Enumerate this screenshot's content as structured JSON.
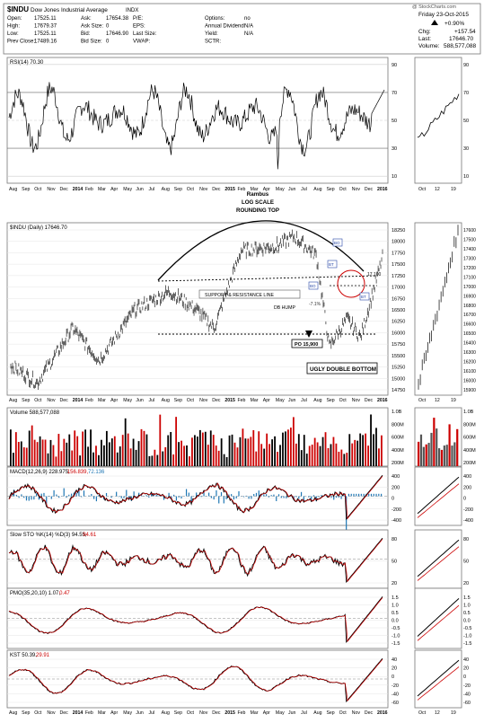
{
  "header": {
    "title": "$INDU",
    "subtitle": "Dow Jones Industrial Average",
    "exchange": "INDX",
    "watermark": "@ StockCharts.com",
    "date": "Friday 23-Oct-2015",
    "change_pct": "+0.90%",
    "chg_label": "Chg:",
    "chg_value": "+157.54",
    "last_label": "Last:",
    "last_value": "17646.70",
    "volume_label": "Volume:",
    "volume_value": "588,577,088",
    "quotes": [
      {
        "label": "Open:",
        "value": "17525.11"
      },
      {
        "label": "High:",
        "value": "17679.37"
      },
      {
        "label": "Low:",
        "value": "17525.11"
      },
      {
        "label": "Prev Close:",
        "value": "17489.16"
      }
    ],
    "quotes2": [
      {
        "label": "Ask:",
        "value": "17654.38"
      },
      {
        "label": "Ask Size:",
        "value": "0"
      },
      {
        "label": "Bid:",
        "value": "17646.90"
      },
      {
        "label": "Bid Size:",
        "value": "0"
      }
    ],
    "quotes3": [
      {
        "label": "P/E:",
        "value": ""
      },
      {
        "label": "EPS:",
        "value": ""
      },
      {
        "label": "Last Size:",
        "value": ""
      },
      {
        "label": "VWAP:",
        "value": ""
      }
    ],
    "quotes4": [
      {
        "label": "Options:",
        "value": "no"
      },
      {
        "label": "Annual Dividend:",
        "value": "N/A"
      },
      {
        "label": "Yield:",
        "value": "N/A"
      },
      {
        "label": "SCTR:",
        "value": ""
      }
    ]
  },
  "colors": {
    "up": "#000000",
    "down": "#cc0000",
    "macd_hist": "#1f77b4",
    "signal": "#cc0000",
    "dash": "#000000"
  },
  "x_axis": {
    "months": [
      "Aug",
      "Sep",
      "Oct",
      "Nov",
      "Dec",
      "2014",
      "Feb",
      "Mar",
      "Apr",
      "May",
      "Jun",
      "Jul",
      "Aug",
      "Sep",
      "Oct",
      "Nov",
      "Dec",
      "2015",
      "Feb",
      "Mar",
      "Apr",
      "May",
      "Jun",
      "Jul",
      "Aug",
      "Sep",
      "Oct",
      "Nov",
      "Dec",
      "2016"
    ],
    "side_months": [
      "Oct",
      "12",
      "19"
    ]
  },
  "panels": {
    "rsi": {
      "label": "RSI(14) 70.30",
      "ticks": [
        "90",
        "70",
        "50",
        "30",
        "10"
      ]
    },
    "price": {
      "label": "$INDU (Daily) 17646.70",
      "ticks": [
        "18250",
        "18000",
        "17750",
        "17500",
        "17250",
        "17000",
        "16750",
        "16500",
        "16250",
        "16000",
        "15750",
        "15500",
        "15250",
        "15000",
        "14750"
      ],
      "side_ticks": [
        "17600",
        "17500",
        "17400",
        "17300",
        "17200",
        "17100",
        "17000",
        "16900",
        "16800",
        "16700",
        "16600",
        "16500",
        "16400",
        "16300",
        "16200",
        "16100",
        "16000",
        "15900"
      ]
    },
    "volume": {
      "label": "Volume 588,577,088",
      "ticks": [
        "1.0B",
        "800M",
        "600M",
        "400M",
        "200M"
      ]
    },
    "macd": {
      "label_a": "MACD(12,26,9) 228.975,",
      "label_b": "156.839,",
      "label_c": "72.136",
      "ticks": [
        "400",
        "200",
        "0",
        "-200",
        "-400"
      ]
    },
    "sto": {
      "label_a": "Slow STO %K(14) %D(3) 94.55,",
      "label_b": "94.61",
      "ticks": [
        "80",
        "50",
        "20"
      ]
    },
    "pmo": {
      "label_a": "PMO(35,20,10) 1.07,",
      "label_b": "0.47",
      "ticks": [
        "1.5",
        "1.0",
        "0.5",
        "0.0",
        "-0.5",
        "-1.0",
        "-1.5"
      ]
    },
    "kst": {
      "label_a": "KST 50.39,",
      "label_b": "29.91",
      "ticks": [
        "40",
        "20",
        "0",
        "-20",
        "-40",
        "-60"
      ]
    }
  },
  "annotations": {
    "title_lines": [
      "Rambus",
      "LOG SCALE",
      "ROUNDING TOP"
    ],
    "support": "SUPPORT & RESISTANCE LINE",
    "db_hump": "DB HUMP",
    "pct1": "-7.1%",
    "pct2": "-7.1%",
    "po": "PO 15,900",
    "ugly": "UGLY DOUBLE BOTTOM",
    "level": "17,100",
    "bt1": "BT",
    "bt2": "BT",
    "bo1": "BO",
    "bo2": "BO"
  },
  "chart_data": {
    "type": "line",
    "title": "$INDU (Daily) 17646.70",
    "series": [
      {
        "name": "$INDU",
        "x": [
          "Aug 2013",
          "Oct 2013",
          "Dec 2013",
          "Feb 2014",
          "Apr 2014",
          "Jun 2014",
          "Aug 2014",
          "Oct 2014",
          "Dec 2014",
          "Feb 2015",
          "Apr 2015",
          "Jun 2015",
          "Aug 2015",
          "Oct 2015"
        ],
        "values": [
          15300,
          14900,
          16100,
          15400,
          16500,
          16900,
          16500,
          16100,
          17800,
          17900,
          18100,
          17700,
          15700,
          17646.7
        ]
      }
    ],
    "ylim": [
      14750,
      18250
    ],
    "log_scale": true,
    "grid": true
  }
}
